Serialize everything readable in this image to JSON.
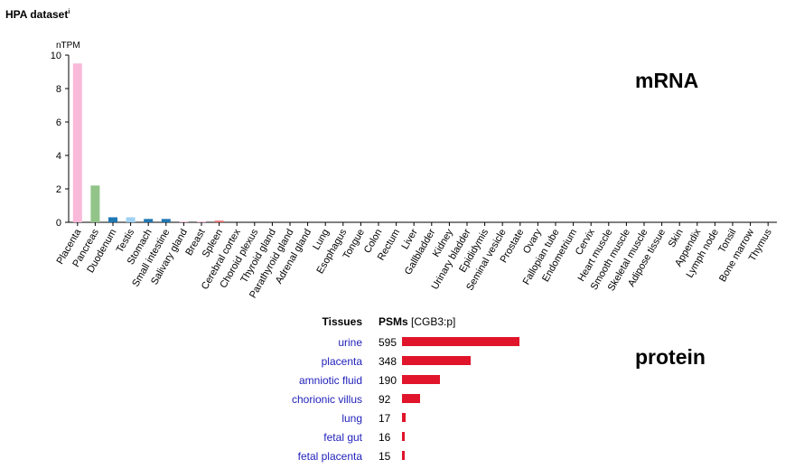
{
  "dataset": {
    "title": "HPA dataset",
    "info_mark": "i"
  },
  "labels": {
    "mrna": "mRNA",
    "protein": "protein"
  },
  "colors": {
    "pink": "#f9b9d8",
    "green": "#92c48a",
    "blue": "#1f77b4",
    "lightblue": "#9fd1f2",
    "red": "#e0142a",
    "link": "#2222bb"
  },
  "chart_data": [
    {
      "type": "bar",
      "ylabel": "nTPM",
      "ylim": [
        0,
        10
      ],
      "yticks": [
        0,
        2,
        4,
        6,
        8,
        10
      ],
      "categories": [
        "Placenta",
        "Pancreas",
        "Duodenum",
        "Testis",
        "Stomach",
        "Small intestine",
        "Salivary gland",
        "Breast",
        "Spleen",
        "Cerebral cortex",
        "Choroid plexus",
        "Thyroid gland",
        "Parathyroid gland",
        "Adrenal gland",
        "Lung",
        "Esophagus",
        "Tongue",
        "Colon",
        "Rectum",
        "Liver",
        "Gallbladder",
        "Kidney",
        "Urinary bladder",
        "Epididymis",
        "Seminal vesicle",
        "Prostate",
        "Ovary",
        "Fallopian tube",
        "Endometrium",
        "Cervix",
        "Heart muscle",
        "Smooth muscle",
        "Skeletal muscle",
        "Adipose tissue",
        "Skin",
        "Appendix",
        "Lymph node",
        "Tonsil",
        "Bone marrow",
        "Thymus"
      ],
      "values": [
        9.5,
        2.2,
        0.3,
        0.3,
        0.2,
        0.2,
        0.05,
        0.05,
        0.1,
        0,
        0,
        0,
        0,
        0,
        0,
        0,
        0,
        0,
        0,
        0,
        0,
        0,
        0,
        0,
        0,
        0,
        0,
        0,
        0,
        0,
        0,
        0,
        0,
        0,
        0,
        0,
        0,
        0,
        0,
        0
      ],
      "bar_colors": [
        "#f9b9d8",
        "#92c48a",
        "#1f77b4",
        "#9fd1f2",
        "#1f77b4",
        "#1f77b4",
        "#f9b9d8",
        "#f9b9d8",
        "#e57373",
        "#cccccc",
        "#cccccc",
        "#cccccc",
        "#cccccc",
        "#cccccc",
        "#cccccc",
        "#cccccc",
        "#cccccc",
        "#cccccc",
        "#cccccc",
        "#cccccc",
        "#cccccc",
        "#cccccc",
        "#cccccc",
        "#cccccc",
        "#cccccc",
        "#cccccc",
        "#cccccc",
        "#cccccc",
        "#cccccc",
        "#cccccc",
        "#cccccc",
        "#cccccc",
        "#cccccc",
        "#cccccc",
        "#cccccc",
        "#cccccc",
        "#cccccc",
        "#cccccc",
        "#cccccc",
        "#cccccc"
      ]
    },
    {
      "type": "bar",
      "orientation": "horizontal",
      "header_tissues": "Tissues",
      "header_psms": "PSMs",
      "header_psms_suffix": "[CGB3:p]",
      "categories": [
        "urine",
        "placenta",
        "amniotic fluid",
        "chorionic villus",
        "lung",
        "fetal gut",
        "fetal placenta"
      ],
      "values": [
        595,
        348,
        190,
        92,
        17,
        16,
        15
      ]
    }
  ]
}
